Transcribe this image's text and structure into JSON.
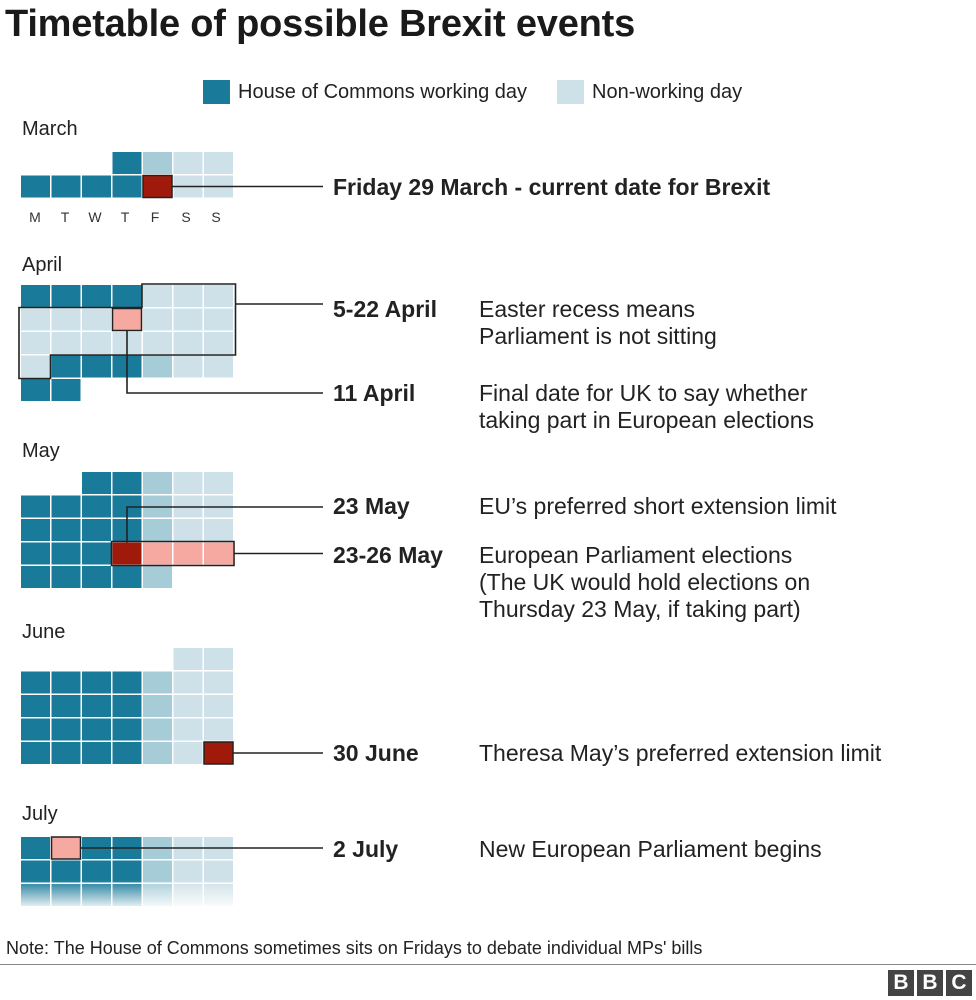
{
  "title": "Timetable of possible Brexit events",
  "legend": [
    {
      "label": "House of Commons working day",
      "color": "#1a7a9a"
    },
    {
      "label": "Non-working day",
      "color": "#cfe1e8"
    }
  ],
  "colors": {
    "working": "#1a7a9a",
    "weekend": "#cfe1e8",
    "friday": "#a6ccd8",
    "highlight_dark": "#a01a0c",
    "highlight_light": "#f5a9a0"
  },
  "weekday_labels": [
    "M",
    "T",
    "W",
    "T",
    "F",
    "S",
    "S"
  ],
  "chart_data": {
    "type": "table",
    "title": "Timetable of possible Brexit events",
    "months": [
      {
        "name": "March",
        "shown_days": [
          25,
          26,
          27,
          28,
          29,
          30,
          31
        ],
        "start_weekday": 0,
        "partial_top_row": [
          28,
          29,
          30,
          31
        ]
      },
      {
        "name": "April",
        "days": 30,
        "start_weekday": 0,
        "recess": [
          5,
          22
        ]
      },
      {
        "name": "May",
        "days": 31,
        "start_weekday": 2
      },
      {
        "name": "June",
        "days": 30,
        "start_weekday": 5
      },
      {
        "name": "July",
        "shown_days": [
          1,
          2,
          3,
          4,
          5,
          6,
          7,
          8,
          9,
          10,
          11,
          12,
          13,
          14,
          15,
          16,
          17,
          18,
          19,
          20,
          21
        ],
        "start_weekday": 0
      }
    ],
    "events": [
      {
        "label": "Friday 29 March - current date for Brexit",
        "description": "",
        "date": "2019-03-29"
      },
      {
        "label": "5-22 April",
        "description": "Easter recess means\nParliament is not sitting",
        "date": "2019-04-05/2019-04-22"
      },
      {
        "label": "11 April",
        "description": "Final date for UK to say whether\ntaking part in European elections",
        "date": "2019-04-11"
      },
      {
        "label": "23 May",
        "description": "EU’s preferred short extension limit",
        "date": "2019-05-23"
      },
      {
        "label": "23-26 May",
        "description": "European Parliament elections\n(The UK would hold elections on\nThursday 23 May, if taking part)",
        "date": "2019-05-23/2019-05-26"
      },
      {
        "label": "30 June",
        "description": "Theresa May’s preferred extension limit",
        "date": "2019-06-30"
      },
      {
        "label": "2 July",
        "description": "New European Parliament begins",
        "date": "2019-07-02"
      }
    ]
  },
  "note": "Note: The House of Commons sometimes sits on Fridays to debate individual MPs' bills",
  "logo": [
    "B",
    "B",
    "C"
  ]
}
